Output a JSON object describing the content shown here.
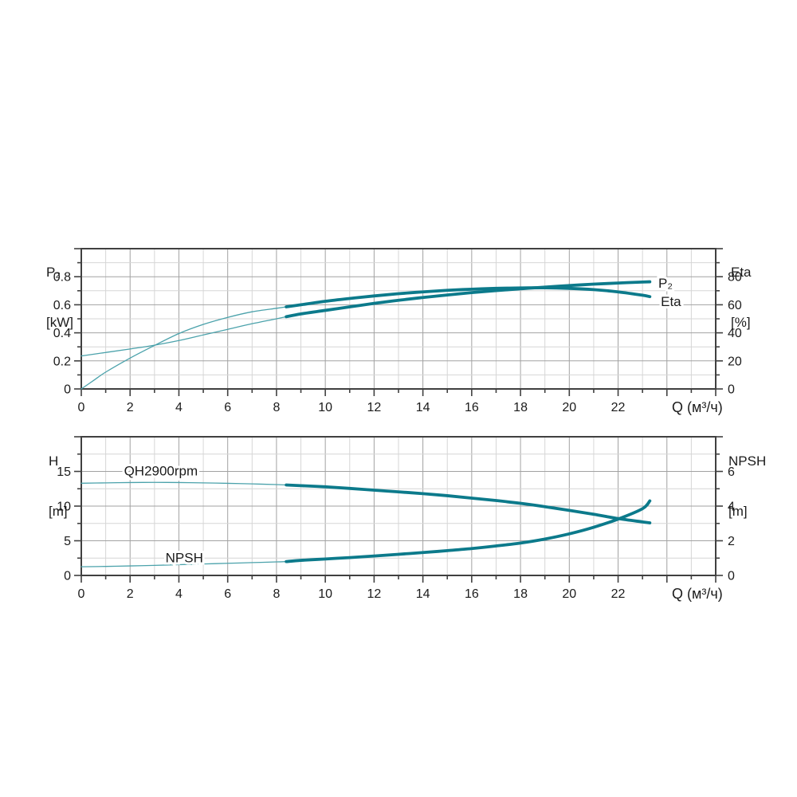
{
  "colors": {
    "background": "#ffffff",
    "curve_thin": "#4ba2ab",
    "curve_thick": "#0c7a8b",
    "grid_minor": "#d6d6d6",
    "grid_major": "#a2a2a2",
    "axis": "#404040",
    "text": "#1b1b1b"
  },
  "axis_titles": {
    "top_left": [
      "P₂",
      "[kW]"
    ],
    "top_right": [
      "Eta",
      "[%]"
    ],
    "bottom_left": [
      "H",
      "[m]"
    ],
    "bottom_right": [
      "NPSH",
      "[m]"
    ]
  },
  "chart_data": [
    {
      "name": "power-efficiency",
      "type": "line",
      "x": {
        "label": "Q (м³/ч)",
        "range": [
          0,
          26
        ],
        "grid_step": 1,
        "tick_step": 1,
        "major_step": 2,
        "tick_labels": [
          {
            "v": 0,
            "t": "0"
          },
          {
            "v": 2,
            "t": "2"
          },
          {
            "v": 4,
            "t": "4"
          },
          {
            "v": 6,
            "t": "6"
          },
          {
            "v": 8,
            "t": "8"
          },
          {
            "v": 10,
            "t": "10"
          },
          {
            "v": 12,
            "t": "12"
          },
          {
            "v": 14,
            "t": "14"
          },
          {
            "v": 16,
            "t": "16"
          },
          {
            "v": 18,
            "t": "18"
          },
          {
            "v": 20,
            "t": "20"
          },
          {
            "v": 22,
            "t": "22"
          }
        ]
      },
      "y_left": {
        "label": "P₂ [kW]",
        "range": [
          0,
          1
        ],
        "grid_step": 0.1,
        "tick_step": 0.1,
        "major_step": 0.2,
        "tick_labels": [
          {
            "v": 0,
            "t": "0"
          },
          {
            "v": 0.2,
            "t": "0.2"
          },
          {
            "v": 0.4,
            "t": "0.4"
          },
          {
            "v": 0.6,
            "t": "0.6"
          },
          {
            "v": 0.8,
            "t": "0.8"
          }
        ]
      },
      "y_right": {
        "label": "Eta [%]",
        "range": [
          0,
          100
        ],
        "tick_step": 10,
        "major_step": 20,
        "tick_labels": [
          {
            "v": 0,
            "t": "0"
          },
          {
            "v": 20,
            "t": "20"
          },
          {
            "v": 40,
            "t": "40"
          },
          {
            "v": 60,
            "t": "60"
          },
          {
            "v": 80,
            "t": "80"
          }
        ]
      },
      "series": [
        {
          "name": "P2",
          "axis": "left",
          "thick_from": 8.4,
          "points": [
            [
              0,
              0.235
            ],
            [
              1,
              0.26
            ],
            [
              2,
              0.285
            ],
            [
              3,
              0.312
            ],
            [
              4,
              0.345
            ],
            [
              5,
              0.385
            ],
            [
              6,
              0.425
            ],
            [
              7,
              0.465
            ],
            [
              8,
              0.5
            ],
            [
              8.4,
              0.515
            ],
            [
              9,
              0.535
            ],
            [
              10,
              0.56
            ],
            [
              11,
              0.585
            ],
            [
              12,
              0.61
            ],
            [
              13,
              0.632
            ],
            [
              14,
              0.652
            ],
            [
              15,
              0.67
            ],
            [
              16,
              0.687
            ],
            [
              17,
              0.701
            ],
            [
              18,
              0.714
            ],
            [
              19,
              0.726
            ],
            [
              20,
              0.737
            ],
            [
              21,
              0.747
            ],
            [
              22,
              0.755
            ],
            [
              23,
              0.762
            ],
            [
              23.3,
              0.764
            ]
          ]
        },
        {
          "name": "Eta",
          "axis": "right",
          "thick_from": 8.4,
          "points": [
            [
              0,
              0
            ],
            [
              0.5,
              6
            ],
            [
              1,
              12
            ],
            [
              2,
              22
            ],
            [
              3,
              31
            ],
            [
              4,
              39.5
            ],
            [
              5,
              46
            ],
            [
              6,
              51
            ],
            [
              7,
              55
            ],
            [
              8,
              57.5
            ],
            [
              8.4,
              58.5
            ],
            [
              9,
              60
            ],
            [
              10,
              62.5
            ],
            [
              11,
              64.5
            ],
            [
              12,
              66.3
            ],
            [
              13,
              67.9
            ],
            [
              14,
              69.2
            ],
            [
              15,
              70.3
            ],
            [
              16,
              71.1
            ],
            [
              17,
              71.7
            ],
            [
              18,
              72
            ],
            [
              19,
              72.1
            ],
            [
              20,
              71.7
            ],
            [
              21,
              70.8
            ],
            [
              22,
              69.2
            ],
            [
              23,
              66.8
            ],
            [
              23.3,
              65.8
            ]
          ]
        }
      ],
      "annotations": [
        {
          "text": "P₂",
          "q": 23.65,
          "value": 0.755,
          "axis": "left"
        },
        {
          "text": "Eta",
          "q": 23.75,
          "value": 62.5,
          "axis": "right"
        }
      ]
    },
    {
      "name": "head-npsh",
      "type": "line",
      "x": {
        "label": "Q (м³/ч)",
        "range": [
          0,
          26
        ],
        "grid_step": 1,
        "tick_step": 1,
        "major_step": 2,
        "tick_labels": [
          {
            "v": 0,
            "t": "0"
          },
          {
            "v": 2,
            "t": "2"
          },
          {
            "v": 4,
            "t": "4"
          },
          {
            "v": 6,
            "t": "6"
          },
          {
            "v": 8,
            "t": "8"
          },
          {
            "v": 10,
            "t": "10"
          },
          {
            "v": 12,
            "t": "12"
          },
          {
            "v": 14,
            "t": "14"
          },
          {
            "v": 16,
            "t": "16"
          },
          {
            "v": 18,
            "t": "18"
          },
          {
            "v": 20,
            "t": "20"
          },
          {
            "v": 22,
            "t": "22"
          }
        ]
      },
      "y_left": {
        "label": "H [m]",
        "range": [
          0,
          20
        ],
        "grid_step": 2.5,
        "tick_step": 2.5,
        "major_step": 5,
        "tick_labels": [
          {
            "v": 0,
            "t": "0"
          },
          {
            "v": 5,
            "t": "5"
          },
          {
            "v": 10,
            "t": "10"
          },
          {
            "v": 15,
            "t": "15"
          }
        ]
      },
      "y_right": {
        "label": "NPSH [m]",
        "range": [
          0,
          8
        ],
        "tick_step": 1,
        "major_step": 2,
        "tick_labels": [
          {
            "v": 0,
            "t": "0"
          },
          {
            "v": 2,
            "t": "2"
          },
          {
            "v": 4,
            "t": "4"
          },
          {
            "v": 6,
            "t": "6"
          }
        ]
      },
      "series": [
        {
          "name": "QH2900rpm",
          "axis": "left",
          "thick_from": 8.4,
          "points": [
            [
              0,
              13.3
            ],
            [
              1,
              13.35
            ],
            [
              2,
              13.4
            ],
            [
              3,
              13.42
            ],
            [
              4,
              13.4
            ],
            [
              5,
              13.35
            ],
            [
              6,
              13.28
            ],
            [
              7,
              13.2
            ],
            [
              8,
              13.1
            ],
            [
              8.4,
              13.05
            ],
            [
              9,
              12.95
            ],
            [
              10,
              12.78
            ],
            [
              11,
              12.55
            ],
            [
              12,
              12.3
            ],
            [
              13,
              12.05
            ],
            [
              14,
              11.8
            ],
            [
              15,
              11.5
            ],
            [
              16,
              11.15
            ],
            [
              17,
              10.8
            ],
            [
              18,
              10.4
            ],
            [
              19,
              9.92
            ],
            [
              20,
              9.38
            ],
            [
              21,
              8.82
            ],
            [
              22,
              8.2
            ],
            [
              23,
              7.72
            ],
            [
              23.3,
              7.58
            ]
          ]
        },
        {
          "name": "NPSH",
          "axis": "right",
          "thick_from": 8.4,
          "points": [
            [
              0,
              0.5
            ],
            [
              1,
              0.52
            ],
            [
              2,
              0.55
            ],
            [
              3,
              0.58
            ],
            [
              4,
              0.62
            ],
            [
              5,
              0.66
            ],
            [
              6,
              0.7
            ],
            [
              7,
              0.74
            ],
            [
              8,
              0.78
            ],
            [
              8.4,
              0.8
            ],
            [
              9,
              0.87
            ],
            [
              10,
              0.95
            ],
            [
              11,
              1.03
            ],
            [
              12,
              1.12
            ],
            [
              13,
              1.22
            ],
            [
              14,
              1.32
            ],
            [
              15,
              1.43
            ],
            [
              16,
              1.55
            ],
            [
              17,
              1.7
            ],
            [
              18,
              1.87
            ],
            [
              19,
              2.1
            ],
            [
              20,
              2.4
            ],
            [
              21,
              2.78
            ],
            [
              22,
              3.25
            ],
            [
              23,
              3.85
            ],
            [
              23.3,
              4.3
            ]
          ]
        }
      ],
      "annotations": [
        {
          "text": "QH2900rpm",
          "q": 1.75,
          "value": 15.1,
          "axis": "left"
        },
        {
          "text": "NPSH",
          "q": 3.45,
          "value": 2.6,
          "axis": "left"
        }
      ]
    }
  ]
}
